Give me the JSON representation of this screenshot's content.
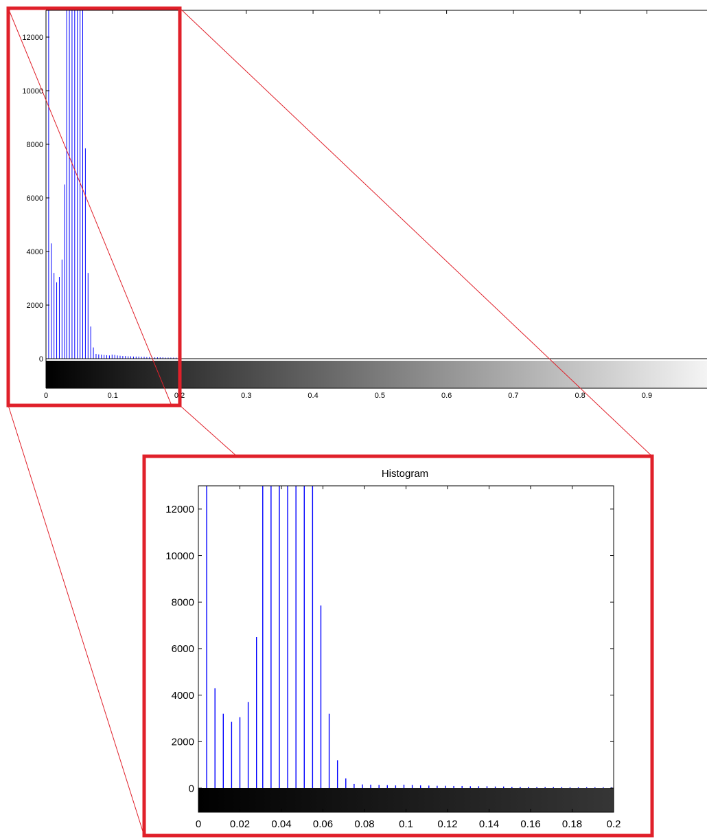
{
  "colors": {
    "bar": "#0000ff",
    "highlight": "#e0202a",
    "connector": "#e0202a",
    "axis": "#000000"
  },
  "chart_data": [
    {
      "type": "bar",
      "role": "full-histogram",
      "title": "",
      "xlabel": "",
      "ylabel": "",
      "xlim": [
        0,
        1
      ],
      "ylim": [
        0,
        13000
      ],
      "xticks": [
        "0",
        "0.1",
        "0.2",
        "0.3",
        "0.4",
        "0.5",
        "0.6",
        "0.7",
        "0.8",
        "0.9"
      ],
      "yticks": [
        "0",
        "2000",
        "4000",
        "6000",
        "8000",
        "10000",
        "12000"
      ],
      "colorbar": "grayscale",
      "x": [
        0.004,
        0.008,
        0.012,
        0.016,
        0.02,
        0.024,
        0.028,
        0.031,
        0.035,
        0.039,
        0.043,
        0.047,
        0.051,
        0.055,
        0.059,
        0.063,
        0.067,
        0.071,
        0.075,
        0.079,
        0.083,
        0.087,
        0.091,
        0.095,
        0.099,
        0.103,
        0.107,
        0.111,
        0.115,
        0.119,
        0.123,
        0.127,
        0.131,
        0.135,
        0.139,
        0.143,
        0.147,
        0.151,
        0.155,
        0.159,
        0.163,
        0.167,
        0.171,
        0.175,
        0.179,
        0.183,
        0.187,
        0.191,
        0.195,
        0.199
      ],
      "values": [
        13000,
        4300,
        3200,
        2850,
        3050,
        3700,
        6500,
        13000,
        13000,
        13000,
        13000,
        13000,
        13000,
        13000,
        7850,
        3200,
        1200,
        420,
        180,
        160,
        150,
        140,
        130,
        120,
        150,
        140,
        120,
        110,
        100,
        100,
        90,
        90,
        80,
        80,
        80,
        70,
        70,
        60,
        60,
        60,
        50,
        50,
        50,
        50,
        40,
        40,
        40,
        40,
        40,
        40
      ]
    },
    {
      "type": "bar",
      "role": "zoomed-histogram",
      "title": "Histogram",
      "xlabel": "",
      "ylabel": "",
      "xlim": [
        0,
        0.2
      ],
      "ylim": [
        0,
        13000
      ],
      "xticks": [
        "0",
        "0.02",
        "0.04",
        "0.06",
        "0.08",
        "0.1",
        "0.12",
        "0.14",
        "0.16",
        "0.18",
        "0.2"
      ],
      "yticks": [
        "0",
        "2000",
        "4000",
        "6000",
        "8000",
        "10000",
        "12000"
      ],
      "colorbar": "grayscale",
      "x": [
        0.004,
        0.008,
        0.012,
        0.016,
        0.02,
        0.024,
        0.028,
        0.031,
        0.035,
        0.039,
        0.043,
        0.047,
        0.051,
        0.055,
        0.059,
        0.063,
        0.067,
        0.071,
        0.075,
        0.079,
        0.083,
        0.087,
        0.091,
        0.095,
        0.099,
        0.103,
        0.107,
        0.111,
        0.115,
        0.119,
        0.123,
        0.127,
        0.131,
        0.135,
        0.139,
        0.143,
        0.147,
        0.151,
        0.155,
        0.159,
        0.163,
        0.167,
        0.171,
        0.175,
        0.179,
        0.183,
        0.187,
        0.191,
        0.195,
        0.199
      ],
      "values": [
        13000,
        4300,
        3200,
        2850,
        3050,
        3700,
        6500,
        13000,
        13000,
        13000,
        13000,
        13000,
        13000,
        13000,
        7850,
        3200,
        1200,
        420,
        180,
        160,
        150,
        140,
        130,
        120,
        150,
        140,
        120,
        110,
        100,
        100,
        90,
        90,
        80,
        80,
        80,
        70,
        70,
        60,
        60,
        60,
        50,
        50,
        50,
        50,
        40,
        40,
        40,
        40,
        40,
        40
      ]
    }
  ]
}
